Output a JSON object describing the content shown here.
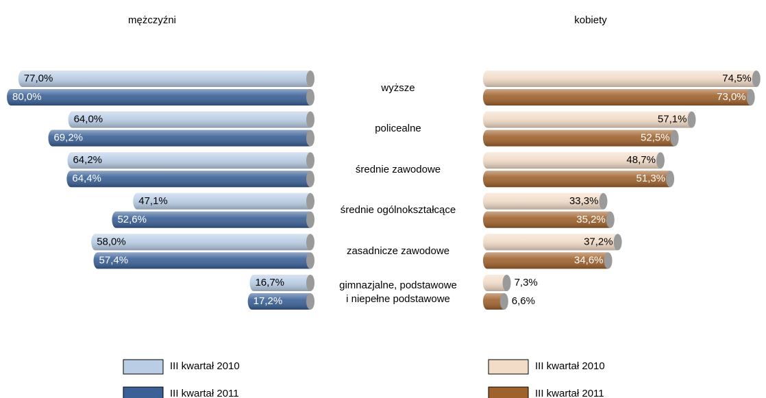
{
  "chart_data": {
    "type": "butterfly",
    "categories": [
      "wyższe",
      "policealne",
      "średnie zawodowe",
      "średnie ogólnokształcące",
      "zasadnicze zawodowe",
      "gimnazjalne, podstawowe\ni niepełne podstawowe"
    ],
    "panels": [
      {
        "title": "mężczyźni",
        "series": [
          {
            "name": "III kwartał 2010",
            "color": "#b9cde5",
            "values": [
              77.0,
              64.0,
              64.2,
              47.1,
              58.0,
              16.7
            ],
            "value_labels": [
              "77,0%",
              "64,0%",
              "64,2%",
              "47,1%",
              "58,0%",
              "16,7%"
            ]
          },
          {
            "name": "III kwartał 2011",
            "color": "#3a6096",
            "values": [
              80.0,
              69.2,
              64.4,
              52.6,
              57.4,
              17.2
            ],
            "value_labels": [
              "80,0%",
              "69,2%",
              "64,4%",
              "52,6%",
              "57,4%",
              "17,2%"
            ]
          }
        ]
      },
      {
        "title": "kobiety",
        "series": [
          {
            "name": "III kwartał 2010",
            "color": "#f2dcc8",
            "values": [
              74.5,
              57.1,
              48.7,
              33.3,
              37.2,
              7.3
            ],
            "value_labels": [
              "74,5%",
              "57,1%",
              "48,7%",
              "33,3%",
              "37,2%",
              "7,3%"
            ]
          },
          {
            "name": "III kwartał 2011",
            "color": "#a0622d",
            "values": [
              73.0,
              52.5,
              51.3,
              35.2,
              34.6,
              6.6
            ],
            "value_labels": [
              "73,0%",
              "52,5%",
              "51,3%",
              "35,2%",
              "34,6%",
              "6,6%"
            ]
          }
        ]
      }
    ]
  }
}
